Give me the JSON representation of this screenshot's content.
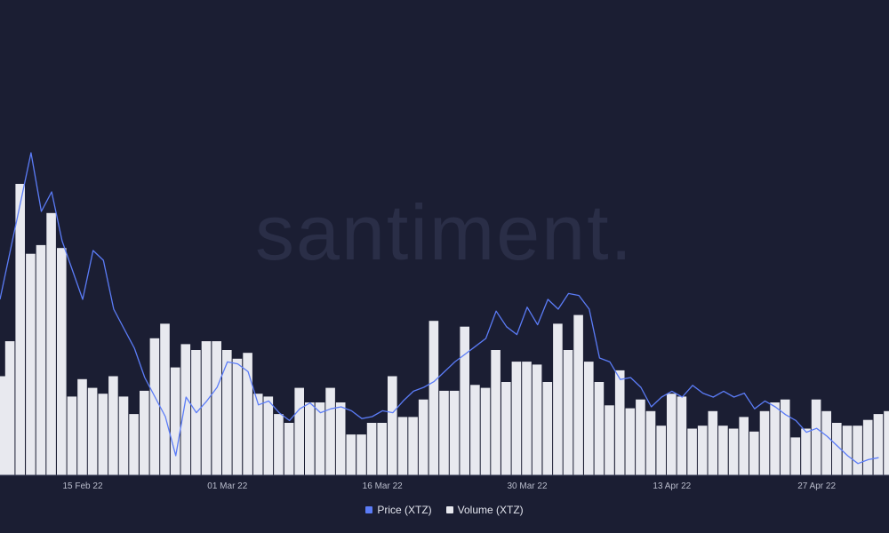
{
  "watermark": "santiment.",
  "legend": {
    "price": {
      "label": "Price (XTZ)",
      "color": "#5b7cf7"
    },
    "volume": {
      "label": "Volume (XTZ)",
      "color": "#e8e9ef"
    }
  },
  "chart_data": {
    "type": "bar",
    "combo": "bar-volume-with-price-line",
    "grid": false,
    "legend_position": "bottom-center",
    "x_start": "2022-02-07",
    "x_end": "2022-05-04",
    "x_ticks": [
      {
        "date": "2022-02-15",
        "label": "15 Feb 22"
      },
      {
        "date": "2022-03-01",
        "label": "01 Mar 22"
      },
      {
        "date": "2022-03-16",
        "label": "16 Mar 22"
      },
      {
        "date": "2022-03-30",
        "label": "30 Mar 22"
      },
      {
        "date": "2022-04-13",
        "label": "13 Apr 22"
      },
      {
        "date": "2022-04-27",
        "label": "27 Apr 22"
      }
    ],
    "series": [
      {
        "name": "Price (XTZ)",
        "type": "line",
        "color": "#5b7cf7",
        "ylim": [
          2.4,
          4.4
        ],
        "points": [
          [
            "2022-02-07",
            3.3
          ],
          [
            "2022-02-08",
            3.55
          ],
          [
            "2022-02-09",
            3.8
          ],
          [
            "2022-02-10",
            4.05
          ],
          [
            "2022-02-11",
            3.75
          ],
          [
            "2022-02-12",
            3.85
          ],
          [
            "2022-02-13",
            3.6
          ],
          [
            "2022-02-14",
            3.45
          ],
          [
            "2022-02-15",
            3.3
          ],
          [
            "2022-02-16",
            3.55
          ],
          [
            "2022-02-17",
            3.5
          ],
          [
            "2022-02-18",
            3.25
          ],
          [
            "2022-02-19",
            3.15
          ],
          [
            "2022-02-20",
            3.05
          ],
          [
            "2022-02-21",
            2.9
          ],
          [
            "2022-02-22",
            2.8
          ],
          [
            "2022-02-23",
            2.7
          ],
          [
            "2022-02-24",
            2.5
          ],
          [
            "2022-02-25",
            2.8
          ],
          [
            "2022-02-26",
            2.72
          ],
          [
            "2022-02-27",
            2.78
          ],
          [
            "2022-02-28",
            2.85
          ],
          [
            "2022-03-01",
            2.98
          ],
          [
            "2022-03-02",
            2.97
          ],
          [
            "2022-03-03",
            2.93
          ],
          [
            "2022-03-04",
            2.76
          ],
          [
            "2022-03-05",
            2.78
          ],
          [
            "2022-03-06",
            2.72
          ],
          [
            "2022-03-07",
            2.68
          ],
          [
            "2022-03-08",
            2.74
          ],
          [
            "2022-03-09",
            2.77
          ],
          [
            "2022-03-10",
            2.72
          ],
          [
            "2022-03-11",
            2.74
          ],
          [
            "2022-03-12",
            2.75
          ],
          [
            "2022-03-13",
            2.73
          ],
          [
            "2022-03-14",
            2.69
          ],
          [
            "2022-03-15",
            2.7
          ],
          [
            "2022-03-16",
            2.73
          ],
          [
            "2022-03-17",
            2.72
          ],
          [
            "2022-03-18",
            2.78
          ],
          [
            "2022-03-19",
            2.83
          ],
          [
            "2022-03-20",
            2.85
          ],
          [
            "2022-03-21",
            2.88
          ],
          [
            "2022-03-22",
            2.93
          ],
          [
            "2022-03-23",
            2.98
          ],
          [
            "2022-03-24",
            3.02
          ],
          [
            "2022-03-25",
            3.06
          ],
          [
            "2022-03-26",
            3.1
          ],
          [
            "2022-03-27",
            3.24
          ],
          [
            "2022-03-28",
            3.16
          ],
          [
            "2022-03-29",
            3.12
          ],
          [
            "2022-03-30",
            3.26
          ],
          [
            "2022-03-31",
            3.17
          ],
          [
            "2022-04-01",
            3.3
          ],
          [
            "2022-04-02",
            3.25
          ],
          [
            "2022-04-03",
            3.33
          ],
          [
            "2022-04-04",
            3.32
          ],
          [
            "2022-04-05",
            3.25
          ],
          [
            "2022-04-06",
            3.0
          ],
          [
            "2022-04-07",
            2.98
          ],
          [
            "2022-04-08",
            2.89
          ],
          [
            "2022-04-09",
            2.9
          ],
          [
            "2022-04-10",
            2.85
          ],
          [
            "2022-04-11",
            2.75
          ],
          [
            "2022-04-12",
            2.8
          ],
          [
            "2022-04-13",
            2.83
          ],
          [
            "2022-04-14",
            2.8
          ],
          [
            "2022-04-15",
            2.86
          ],
          [
            "2022-04-16",
            2.82
          ],
          [
            "2022-04-17",
            2.8
          ],
          [
            "2022-04-18",
            2.83
          ],
          [
            "2022-04-19",
            2.8
          ],
          [
            "2022-04-20",
            2.82
          ],
          [
            "2022-04-21",
            2.74
          ],
          [
            "2022-04-22",
            2.78
          ],
          [
            "2022-04-23",
            2.75
          ],
          [
            "2022-04-24",
            2.71
          ],
          [
            "2022-04-25",
            2.68
          ],
          [
            "2022-04-26",
            2.62
          ],
          [
            "2022-04-27",
            2.64
          ],
          [
            "2022-04-28",
            2.6
          ],
          [
            "2022-04-29",
            2.55
          ],
          [
            "2022-04-30",
            2.5
          ],
          [
            "2022-05-01",
            2.46
          ],
          [
            "2022-05-02",
            2.48
          ],
          [
            "2022-05-03",
            2.49
          ]
        ]
      },
      {
        "name": "Volume (XTZ)",
        "type": "bar",
        "color": "#e8e9ef",
        "ylim": [
          0,
          1
        ],
        "points": [
          [
            "2022-02-07",
            0.34
          ],
          [
            "2022-02-08",
            0.46
          ],
          [
            "2022-02-09",
            1.0
          ],
          [
            "2022-02-10",
            0.76
          ],
          [
            "2022-02-11",
            0.79
          ],
          [
            "2022-02-12",
            0.9
          ],
          [
            "2022-02-13",
            0.78
          ],
          [
            "2022-02-14",
            0.27
          ],
          [
            "2022-02-15",
            0.33
          ],
          [
            "2022-02-16",
            0.3
          ],
          [
            "2022-02-17",
            0.28
          ],
          [
            "2022-02-18",
            0.34
          ],
          [
            "2022-02-19",
            0.27
          ],
          [
            "2022-02-20",
            0.21
          ],
          [
            "2022-02-21",
            0.29
          ],
          [
            "2022-02-22",
            0.47
          ],
          [
            "2022-02-23",
            0.52
          ],
          [
            "2022-02-24",
            0.37
          ],
          [
            "2022-02-25",
            0.45
          ],
          [
            "2022-02-26",
            0.43
          ],
          [
            "2022-02-27",
            0.46
          ],
          [
            "2022-02-28",
            0.46
          ],
          [
            "2022-03-01",
            0.43
          ],
          [
            "2022-03-02",
            0.4
          ],
          [
            "2022-03-03",
            0.42
          ],
          [
            "2022-03-04",
            0.28
          ],
          [
            "2022-03-05",
            0.27
          ],
          [
            "2022-03-06",
            0.21
          ],
          [
            "2022-03-07",
            0.18
          ],
          [
            "2022-03-08",
            0.3
          ],
          [
            "2022-03-09",
            0.25
          ],
          [
            "2022-03-10",
            0.25
          ],
          [
            "2022-03-11",
            0.3
          ],
          [
            "2022-03-12",
            0.25
          ],
          [
            "2022-03-13",
            0.14
          ],
          [
            "2022-03-14",
            0.14
          ],
          [
            "2022-03-15",
            0.18
          ],
          [
            "2022-03-16",
            0.18
          ],
          [
            "2022-03-17",
            0.34
          ],
          [
            "2022-03-18",
            0.2
          ],
          [
            "2022-03-19",
            0.2
          ],
          [
            "2022-03-20",
            0.26
          ],
          [
            "2022-03-21",
            0.53
          ],
          [
            "2022-03-22",
            0.29
          ],
          [
            "2022-03-23",
            0.29
          ],
          [
            "2022-03-24",
            0.51
          ],
          [
            "2022-03-25",
            0.31
          ],
          [
            "2022-03-26",
            0.3
          ],
          [
            "2022-03-27",
            0.43
          ],
          [
            "2022-03-28",
            0.32
          ],
          [
            "2022-03-29",
            0.39
          ],
          [
            "2022-03-30",
            0.39
          ],
          [
            "2022-03-31",
            0.38
          ],
          [
            "2022-04-01",
            0.32
          ],
          [
            "2022-04-02",
            0.52
          ],
          [
            "2022-04-03",
            0.43
          ],
          [
            "2022-04-04",
            0.55
          ],
          [
            "2022-04-05",
            0.39
          ],
          [
            "2022-04-06",
            0.32
          ],
          [
            "2022-04-07",
            0.24
          ],
          [
            "2022-04-08",
            0.36
          ],
          [
            "2022-04-09",
            0.23
          ],
          [
            "2022-04-10",
            0.26
          ],
          [
            "2022-04-11",
            0.22
          ],
          [
            "2022-04-12",
            0.17
          ],
          [
            "2022-04-13",
            0.28
          ],
          [
            "2022-04-14",
            0.27
          ],
          [
            "2022-04-15",
            0.16
          ],
          [
            "2022-04-16",
            0.17
          ],
          [
            "2022-04-17",
            0.22
          ],
          [
            "2022-04-18",
            0.17
          ],
          [
            "2022-04-19",
            0.16
          ],
          [
            "2022-04-20",
            0.2
          ],
          [
            "2022-04-21",
            0.15
          ],
          [
            "2022-04-22",
            0.22
          ],
          [
            "2022-04-23",
            0.25
          ],
          [
            "2022-04-24",
            0.26
          ],
          [
            "2022-04-25",
            0.13
          ],
          [
            "2022-04-26",
            0.16
          ],
          [
            "2022-04-27",
            0.26
          ],
          [
            "2022-04-28",
            0.22
          ],
          [
            "2022-04-29",
            0.18
          ],
          [
            "2022-04-30",
            0.17
          ],
          [
            "2022-05-01",
            0.17
          ],
          [
            "2022-05-02",
            0.19
          ],
          [
            "2022-05-03",
            0.21
          ],
          [
            "2022-05-04",
            0.22
          ]
        ]
      }
    ]
  }
}
